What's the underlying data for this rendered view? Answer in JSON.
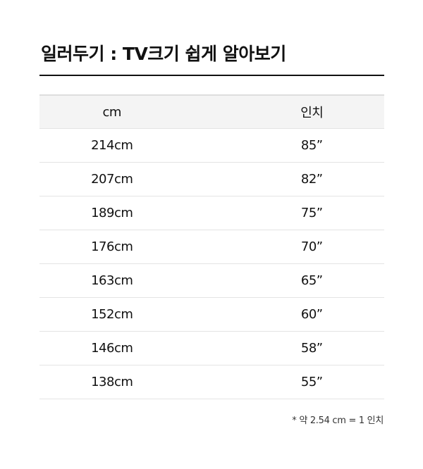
{
  "title": "일러두기 : TV크기 쉽게 알아보기",
  "table": {
    "headers": [
      "cm",
      "인치"
    ],
    "rows": [
      [
        "214cm",
        "85”"
      ],
      [
        "207cm",
        "82”"
      ],
      [
        "189cm",
        "75”"
      ],
      [
        "176cm",
        "70”"
      ],
      [
        "163cm",
        "65”"
      ],
      [
        "152cm",
        "60”"
      ],
      [
        "146cm",
        "58”"
      ],
      [
        "138cm",
        "55”"
      ]
    ]
  },
  "note": "* 약 2.54 cm = 1 인치"
}
